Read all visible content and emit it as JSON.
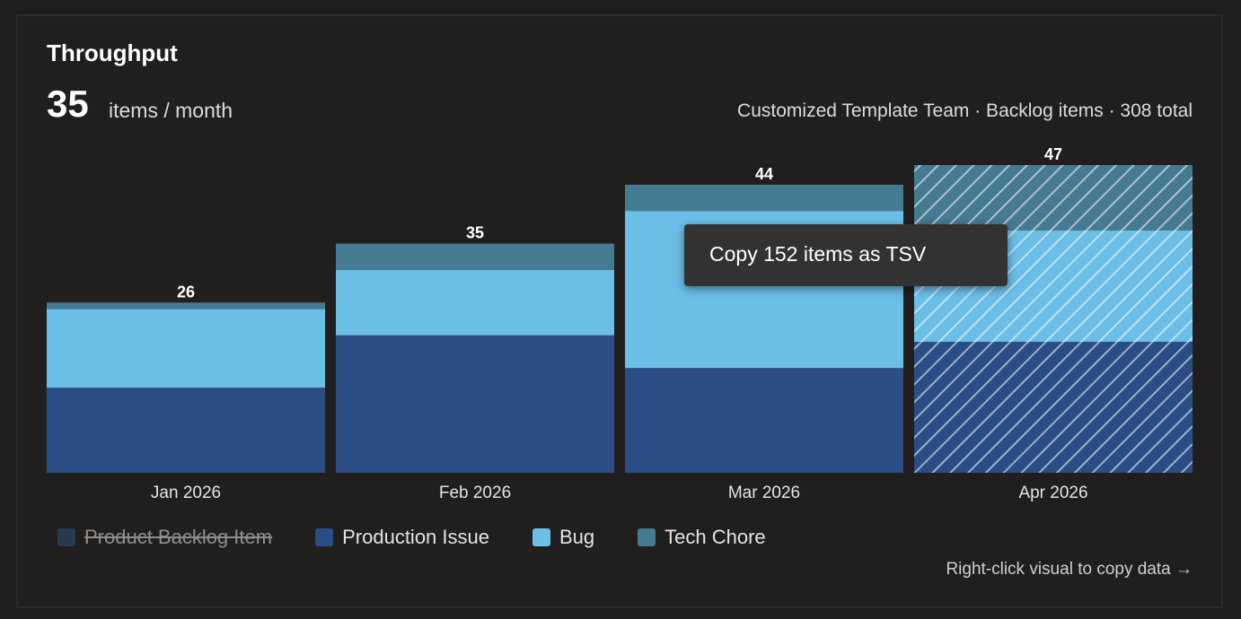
{
  "header": {
    "title": "Throughput",
    "big_number": "35",
    "unit": "items / month",
    "meta": "Customized Template Team · Backlog items · 308 total"
  },
  "tooltip": {
    "text": "Copy 152 items as TSV"
  },
  "footer": {
    "hint": "Right-click visual to copy data →"
  },
  "colors": {
    "product_backlog_item": "#2a4461",
    "production_issue": "#294d84",
    "bug": "#6bbee6",
    "tech_chore": "#457a93",
    "background": "#201f1e"
  },
  "legend": [
    {
      "label": "Product Backlog Item",
      "color": "#2a4461",
      "disabled": true
    },
    {
      "label": "Production Issue",
      "color": "#294d84",
      "disabled": false
    },
    {
      "label": "Bug",
      "color": "#6bbee6",
      "disabled": false
    },
    {
      "label": "Tech Chore",
      "color": "#457a93",
      "disabled": false
    }
  ],
  "chart_data": {
    "type": "bar",
    "stacked": true,
    "categories": [
      "Jan 2026",
      "Feb 2026",
      "Mar 2026",
      "Apr 2026"
    ],
    "totals": [
      26,
      35,
      44,
      47
    ],
    "series": [
      {
        "name": "Production Issue",
        "values": [
          13,
          21,
          16,
          20
        ],
        "color": "#294d84"
      },
      {
        "name": "Bug",
        "values": [
          12,
          10,
          24,
          17
        ],
        "color": "#6bbee6"
      },
      {
        "name": "Tech Chore",
        "values": [
          1,
          4,
          4,
          10
        ],
        "color": "#457a93"
      }
    ],
    "hatched_categories": [
      "Apr 2026"
    ],
    "ylim": [
      0,
      47
    ],
    "grid": false,
    "legend_position": "bottom-left"
  }
}
